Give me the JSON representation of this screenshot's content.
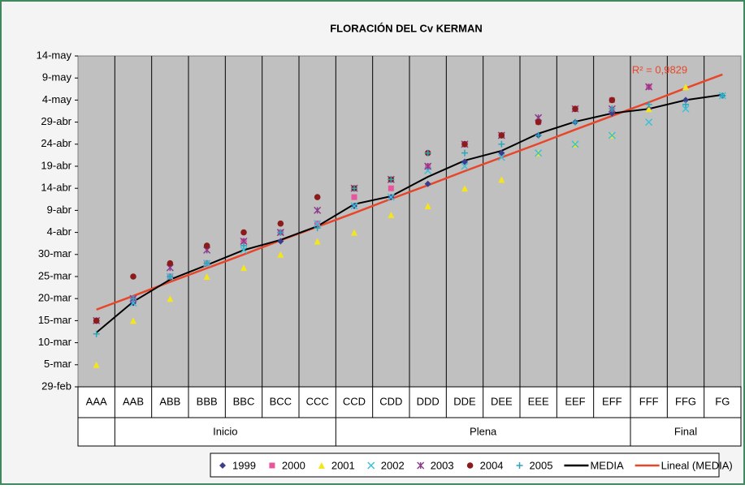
{
  "chart_data": {
    "type": "scatter-line",
    "title": "FLORACIÓN DEL Cv KERMAN",
    "annotation": "R² = 0,9829",
    "categories": [
      "AAA",
      "AAB",
      "ABB",
      "BBB",
      "BBC",
      "BCC",
      "CCC",
      "CCD",
      "CDD",
      "DDD",
      "DDE",
      "DEE",
      "EEE",
      "EEF",
      "EFF",
      "FFF",
      "FFG",
      "FG"
    ],
    "groups": [
      {
        "label": "Inicio",
        "start": 1,
        "end": 6
      },
      {
        "label": "Plena",
        "start": 7,
        "end": 14
      },
      {
        "label": "Final",
        "start": 15,
        "end": 17
      }
    ],
    "ylim": [
      0,
      75
    ],
    "yticks": [
      {
        "value": 0,
        "label": "29-feb"
      },
      {
        "value": 5,
        "label": "5-mar"
      },
      {
        "value": 10,
        "label": "10-mar"
      },
      {
        "value": 15,
        "label": "15-mar"
      },
      {
        "value": 20,
        "label": "20-mar"
      },
      {
        "value": 25,
        "label": "25-mar"
      },
      {
        "value": 30,
        "label": "30-mar"
      },
      {
        "value": 35,
        "label": "4-abr"
      },
      {
        "value": 40,
        "label": "9-abr"
      },
      {
        "value": 45,
        "label": "14-abr"
      },
      {
        "value": 50,
        "label": "19-abr"
      },
      {
        "value": 55,
        "label": "24-abr"
      },
      {
        "value": 60,
        "label": "29-abr"
      },
      {
        "value": 65,
        "label": "4-may"
      },
      {
        "value": 70,
        "label": "9-may"
      },
      {
        "value": 75,
        "label": "14-may"
      }
    ],
    "grid": true,
    "series": [
      {
        "name": "1999",
        "color": "#3c3c8c",
        "marker": "diamond",
        "values": [
          15,
          19,
          25,
          28,
          33,
          33,
          37,
          41,
          43,
          46,
          51,
          53,
          57,
          60,
          62,
          63,
          65,
          66
        ]
      },
      {
        "name": "2000",
        "color": "#e8559c",
        "marker": "square",
        "values": [
          15,
          20,
          25,
          28,
          33,
          35,
          37,
          43,
          45,
          50,
          55,
          57,
          60,
          63,
          65,
          68,
          null,
          null
        ]
      },
      {
        "name": "2001",
        "color": "#f5e51b",
        "marker": "triangle",
        "values": [
          5,
          15,
          20,
          25,
          27,
          30,
          33,
          35,
          39,
          41,
          45,
          47,
          53,
          55,
          57,
          63,
          68,
          null
        ]
      },
      {
        "name": "2002",
        "color": "#3cc0d8",
        "marker": "x",
        "values": [
          15,
          19,
          25,
          28,
          31,
          35,
          37,
          41,
          43,
          49,
          50,
          52,
          53,
          55,
          57,
          60,
          63,
          66
        ]
      },
      {
        "name": "2003",
        "color": "#8c3c8c",
        "marker": "star",
        "values": [
          15,
          20,
          27,
          31,
          33,
          35,
          40,
          45,
          47,
          50,
          55,
          57,
          61,
          63,
          63,
          68,
          null,
          null
        ]
      },
      {
        "name": "2004",
        "color": "#8c1c1c",
        "marker": "circle",
        "values": [
          15,
          25,
          28,
          32,
          35,
          37,
          43,
          45,
          47,
          53,
          55,
          57,
          60,
          63,
          65,
          null,
          null,
          null
        ]
      },
      {
        "name": "2005",
        "color": "#2aa8b8",
        "marker": "plus",
        "values": [
          12,
          20,
          25,
          28,
          32,
          35,
          36,
          45,
          47,
          53,
          53,
          55,
          57,
          60,
          63,
          64,
          64,
          66
        ]
      },
      {
        "name": "MEDIA",
        "color": "#000000",
        "marker": "line",
        "values": [
          12.3,
          19.3,
          24.3,
          27.6,
          31,
          33.3,
          36.4,
          41.4,
          43.2,
          47.6,
          51.3,
          53.5,
          57.4,
          60.1,
          62,
          63,
          65,
          66.2
        ]
      },
      {
        "name": "Lineal (MEDIA)",
        "color": "#e8462a",
        "marker": "line",
        "values": [
          17.5,
          20.6,
          23.8,
          26.9,
          30.0,
          33.2,
          36.3,
          39.4,
          42.6,
          45.7,
          48.9,
          52.0,
          55.1,
          58.3,
          61.4,
          64.5,
          67.7,
          70.8
        ]
      }
    ]
  }
}
